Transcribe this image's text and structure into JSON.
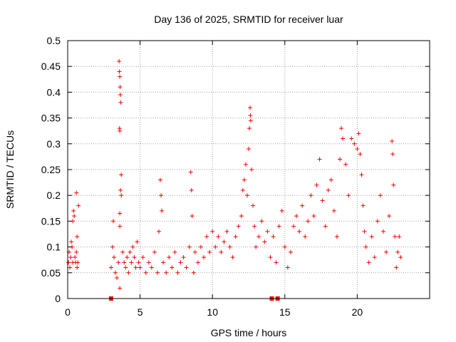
{
  "chart_data": {
    "type": "scatter",
    "title": "Day 136 of 2025, SRMTID for receiver luar",
    "xlabel": "GPS time / hours",
    "ylabel": "SRMTID / TECUs",
    "xlim": [
      0,
      25
    ],
    "ylim": [
      0,
      0.5
    ],
    "xticks": [
      0,
      5,
      10,
      15,
      20
    ],
    "xtick_labels": [
      "0",
      "5",
      "10",
      "15",
      "20"
    ],
    "yticks": [
      0,
      0.05,
      0.1,
      0.15,
      0.2,
      0.25,
      0.3,
      0.35,
      0.4,
      0.45,
      0.5
    ],
    "ytick_labels": [
      "0",
      "0.05",
      "0.1",
      "0.15",
      "0.2",
      "0.25",
      "0.3",
      "0.35",
      "0.4",
      "0.45",
      "0.5"
    ],
    "grid": true,
    "legend": "none",
    "marker": "+",
    "series": [
      {
        "name": "SRMTID",
        "color": "#ff0000",
        "points": [
          [
            0.05,
            0.07
          ],
          [
            0.1,
            0.09
          ],
          [
            0.15,
            0.06
          ],
          [
            0.2,
            0.08
          ],
          [
            0.25,
            0.11
          ],
          [
            0.3,
            0.1
          ],
          [
            0.35,
            0.07
          ],
          [
            0.4,
            0.17
          ],
          [
            0.45,
            0.16
          ],
          [
            0.5,
            0.08
          ],
          [
            0.55,
            0.07
          ],
          [
            0.6,
            0.09
          ],
          [
            0.65,
            0.06
          ],
          [
            0.7,
            0.07
          ],
          [
            0.75,
            0.18
          ],
          [
            0.6,
            0.205
          ],
          [
            0.35,
            0.15
          ],
          [
            0.65,
            0.12
          ],
          [
            3.0,
            0.06
          ],
          [
            3.1,
            0.1
          ],
          [
            3.15,
            0.15
          ],
          [
            3.2,
            0.08
          ],
          [
            3.3,
            0.05
          ],
          [
            3.4,
            0.04
          ],
          [
            3.5,
            0.07
          ],
          [
            3.55,
            0.46
          ],
          [
            3.57,
            0.44
          ],
          [
            3.6,
            0.43
          ],
          [
            3.62,
            0.41
          ],
          [
            3.64,
            0.395
          ],
          [
            3.66,
            0.38
          ],
          [
            3.58,
            0.33
          ],
          [
            3.6,
            0.325
          ],
          [
            3.7,
            0.24
          ],
          [
            3.65,
            0.21
          ],
          [
            3.7,
            0.2
          ],
          [
            3.6,
            0.165
          ],
          [
            3.6,
            0.14
          ],
          [
            3.6,
            0.02
          ],
          [
            3.8,
            0.09
          ],
          [
            3.9,
            0.07
          ],
          [
            4.0,
            0.06
          ],
          [
            4.1,
            0.08
          ],
          [
            4.2,
            0.05
          ],
          [
            4.3,
            0.09
          ],
          [
            4.4,
            0.07
          ],
          [
            4.5,
            0.1
          ],
          [
            4.6,
            0.08
          ],
          [
            4.7,
            0.06
          ],
          [
            4.8,
            0.11
          ],
          [
            4.9,
            0.07
          ],
          [
            5.0,
            0.06
          ],
          [
            5.2,
            0.08
          ],
          [
            5.4,
            0.05
          ],
          [
            5.6,
            0.07
          ],
          [
            5.8,
            0.06
          ],
          [
            6.0,
            0.09
          ],
          [
            6.2,
            0.05
          ],
          [
            6.3,
            0.13
          ],
          [
            6.4,
            0.23
          ],
          [
            6.45,
            0.2
          ],
          [
            6.5,
            0.17
          ],
          [
            6.6,
            0.07
          ],
          [
            6.8,
            0.05
          ],
          [
            7.0,
            0.08
          ],
          [
            7.2,
            0.06
          ],
          [
            7.4,
            0.09
          ],
          [
            7.6,
            0.05
          ],
          [
            7.8,
            0.07
          ],
          [
            8.0,
            0.08
          ],
          [
            8.2,
            0.06
          ],
          [
            8.4,
            0.1
          ],
          [
            8.5,
            0.245
          ],
          [
            8.55,
            0.21
          ],
          [
            8.6,
            0.16
          ],
          [
            8.7,
            0.05
          ],
          [
            8.8,
            0.09
          ],
          [
            9.0,
            0.07
          ],
          [
            9.2,
            0.1
          ],
          [
            9.4,
            0.08
          ],
          [
            9.6,
            0.12
          ],
          [
            9.8,
            0.09
          ],
          [
            10.0,
            0.13
          ],
          [
            10.2,
            0.1
          ],
          [
            10.4,
            0.12
          ],
          [
            10.6,
            0.09
          ],
          [
            10.8,
            0.11
          ],
          [
            11.0,
            0.13
          ],
          [
            11.2,
            0.1
          ],
          [
            11.4,
            0.08
          ],
          [
            11.6,
            0.12
          ],
          [
            11.8,
            0.14
          ],
          [
            12.0,
            0.16
          ],
          [
            12.1,
            0.21
          ],
          [
            12.2,
            0.23
          ],
          [
            12.3,
            0.26
          ],
          [
            12.4,
            0.2
          ],
          [
            12.5,
            0.29
          ],
          [
            12.55,
            0.33
          ],
          [
            12.6,
            0.37
          ],
          [
            12.62,
            0.355
          ],
          [
            12.64,
            0.345
          ],
          [
            12.7,
            0.25
          ],
          [
            12.8,
            0.18
          ],
          [
            12.9,
            0.14
          ],
          [
            13.0,
            0.1
          ],
          [
            13.2,
            0.12
          ],
          [
            13.4,
            0.15
          ],
          [
            13.6,
            0.11
          ],
          [
            13.8,
            0.13
          ],
          [
            14.0,
            0.08
          ],
          [
            14.2,
            0.12
          ],
          [
            14.4,
            0.07
          ],
          [
            14.6,
            0.14
          ],
          [
            14.8,
            0.17
          ],
          [
            15.0,
            0.1
          ],
          [
            15.2,
            0.06
          ],
          [
            15.4,
            0.09
          ],
          [
            15.6,
            0.14
          ],
          [
            15.8,
            0.16
          ],
          [
            16.0,
            0.13
          ],
          [
            16.2,
            0.18
          ],
          [
            16.4,
            0.12
          ],
          [
            16.6,
            0.15
          ],
          [
            16.8,
            0.2
          ],
          [
            17.0,
            0.16
          ],
          [
            17.2,
            0.22
          ],
          [
            17.4,
            0.27
          ],
          [
            17.6,
            0.19
          ],
          [
            17.8,
            0.14
          ],
          [
            18.0,
            0.21
          ],
          [
            18.2,
            0.23
          ],
          [
            18.4,
            0.17
          ],
          [
            18.6,
            0.12
          ],
          [
            18.8,
            0.27
          ],
          [
            18.9,
            0.33
          ],
          [
            19.0,
            0.31
          ],
          [
            19.2,
            0.26
          ],
          [
            19.4,
            0.2
          ],
          [
            19.6,
            0.31
          ],
          [
            19.8,
            0.3
          ],
          [
            20.0,
            0.29
          ],
          [
            20.1,
            0.32
          ],
          [
            20.2,
            0.28
          ],
          [
            20.3,
            0.24
          ],
          [
            20.4,
            0.18
          ],
          [
            20.5,
            0.13
          ],
          [
            20.6,
            0.1
          ],
          [
            20.8,
            0.07
          ],
          [
            21.0,
            0.12
          ],
          [
            21.2,
            0.08
          ],
          [
            21.4,
            0.15
          ],
          [
            21.6,
            0.2
          ],
          [
            21.8,
            0.13
          ],
          [
            22.0,
            0.09
          ],
          [
            22.2,
            0.16
          ],
          [
            22.4,
            0.305
          ],
          [
            22.45,
            0.28
          ],
          [
            22.5,
            0.22
          ],
          [
            22.6,
            0.12
          ],
          [
            22.7,
            0.06
          ],
          [
            22.8,
            0.09
          ],
          [
            22.9,
            0.12
          ],
          [
            23.0,
            0.08
          ]
        ]
      }
    ],
    "gap_markers": [
      3.0,
      14.1,
      14.5
    ]
  }
}
